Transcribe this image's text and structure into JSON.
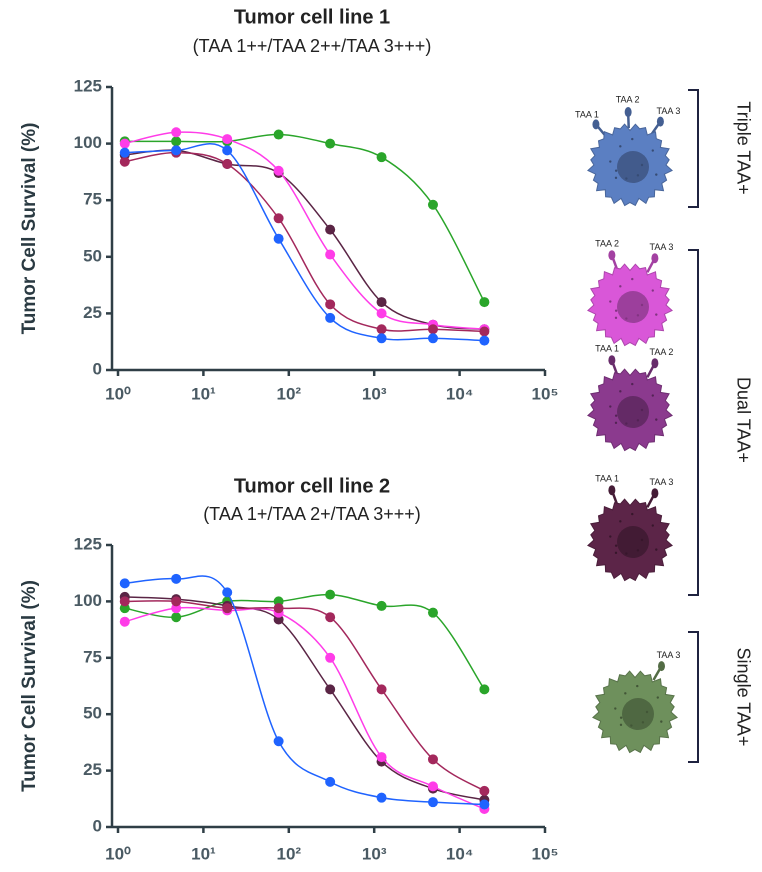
{
  "chart_data": [
    {
      "type": "line",
      "title": "Tumor cell line 1",
      "subtitle": "(TAA 1++/TAA 2++/TAA 3+++)",
      "y_label": "Tumor Cell Survival (%)",
      "log_x": true,
      "xlim": [
        1,
        100000
      ],
      "xticks": [
        {
          "value": 1,
          "label": "10⁰"
        },
        {
          "value": 10,
          "label": "10¹"
        },
        {
          "value": 100,
          "label": "10²"
        },
        {
          "value": 1000,
          "label": "10³"
        },
        {
          "value": 10000,
          "label": "10⁴"
        },
        {
          "value": 100000,
          "label": "10⁵"
        }
      ],
      "ylim": [
        0,
        125
      ],
      "yticks": [
        0,
        25,
        50,
        75,
        100,
        125
      ],
      "x": [
        1.2,
        4.8,
        19,
        76,
        305,
        1220,
        4880,
        19500
      ],
      "series": [
        {
          "color": "#2aa52a",
          "values": [
            101,
            101,
            101,
            104,
            100,
            94,
            73,
            30
          ]
        },
        {
          "color": "#5a2545",
          "values": [
            95,
            97,
            91,
            87,
            62,
            30,
            20,
            18
          ]
        },
        {
          "color": "#ff3ce8",
          "values": [
            100,
            105,
            102,
            88,
            51,
            25,
            20,
            18
          ]
        },
        {
          "color": "#a3285c",
          "values": [
            92,
            96,
            91,
            67,
            29,
            18,
            18,
            17
          ]
        },
        {
          "color": "#1f63ff",
          "values": [
            96,
            97,
            97,
            58,
            23,
            14,
            14,
            13
          ]
        }
      ]
    },
    {
      "type": "line",
      "title": "Tumor cell line 2",
      "subtitle": "(TAA 1+/TAA 2+/TAA 3+++)",
      "y_label": "Tumor Cell Survival (%)",
      "log_x": true,
      "xlim": [
        1,
        100000
      ],
      "xticks": [
        {
          "value": 1,
          "label": "10⁰"
        },
        {
          "value": 10,
          "label": "10¹"
        },
        {
          "value": 100,
          "label": "10²"
        },
        {
          "value": 1000,
          "label": "10³"
        },
        {
          "value": 10000,
          "label": "10⁴"
        },
        {
          "value": 100000,
          "label": "10⁵"
        }
      ],
      "ylim": [
        0,
        125
      ],
      "yticks": [
        0,
        25,
        50,
        75,
        100,
        125
      ],
      "x": [
        1.2,
        4.8,
        19,
        76,
        305,
        1220,
        4880,
        19500
      ],
      "series": [
        {
          "color": "#2aa52a",
          "values": [
            97,
            93,
            100,
            100,
            103,
            98,
            95,
            61
          ]
        },
        {
          "color": "#5a2545",
          "values": [
            102,
            101,
            98,
            92,
            61,
            29,
            17,
            12
          ]
        },
        {
          "color": "#ff3ce8",
          "values": [
            91,
            97,
            96,
            95,
            75,
            31,
            18,
            8
          ]
        },
        {
          "color": "#a3285c",
          "values": [
            100,
            100,
            97,
            97,
            93,
            61,
            30,
            16
          ]
        },
        {
          "color": "#1f63ff",
          "values": [
            108,
            110,
            104,
            38,
            20,
            13,
            11,
            10
          ]
        }
      ]
    }
  ],
  "panel": {
    "groups": [
      {
        "label": "Triple TAA+",
        "cells": [
          {
            "color": "#5b7fc2",
            "markers": [
              "TAA 1",
              "TAA 2",
              "TAA 3"
            ]
          }
        ]
      },
      {
        "label": "Dual TAA+",
        "cells": [
          {
            "color": "#d957d8",
            "markers": [
              "TAA 2",
              "TAA 3"
            ]
          },
          {
            "color": "#8b3a8e",
            "markers": [
              "TAA 1",
              "TAA 2"
            ]
          },
          {
            "color": "#5c2548",
            "markers": [
              "TAA 1",
              "TAA 3"
            ]
          }
        ]
      },
      {
        "label": "Single TAA+",
        "cells": [
          {
            "color": "#6e905c",
            "markers": [
              "TAA 3"
            ]
          }
        ]
      }
    ]
  }
}
